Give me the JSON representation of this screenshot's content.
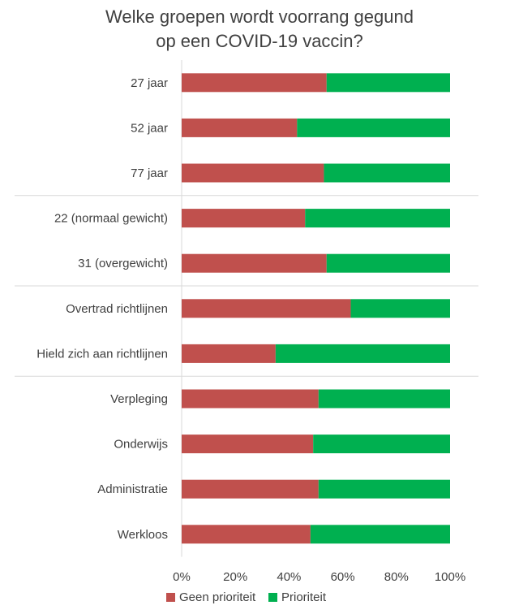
{
  "chart_data": {
    "type": "bar",
    "orientation": "horizontal",
    "stacked": "percent",
    "title_lines": [
      "Welke groepen wordt voorrang gegund",
      "op een COVID-19 vaccin?"
    ],
    "categories": [
      "27 jaar",
      "52 jaar",
      "77 jaar",
      "22 (normaal gewicht)",
      "31 (overgewicht)",
      "Overtrad richtlijnen",
      "Hield zich aan richtlijnen",
      "Verpleging",
      "Onderwijs",
      "Administratie",
      "Werkloos"
    ],
    "group_breaks_after": [
      2,
      4,
      6
    ],
    "series": [
      {
        "name": "Geen prioriteit",
        "color": "#c0504d",
        "values": [
          54,
          43,
          53,
          46,
          54,
          63,
          35,
          51,
          49,
          51,
          48
        ]
      },
      {
        "name": "Prioriteit",
        "color": "#00b050",
        "values": [
          46,
          57,
          47,
          54,
          46,
          37,
          65,
          49,
          51,
          49,
          52
        ]
      }
    ],
    "xlim": [
      0,
      100
    ],
    "x_ticks": [
      "0%",
      "20%",
      "40%",
      "60%",
      "80%",
      "100%"
    ],
    "legend_position": "bottom",
    "grid": false
  }
}
